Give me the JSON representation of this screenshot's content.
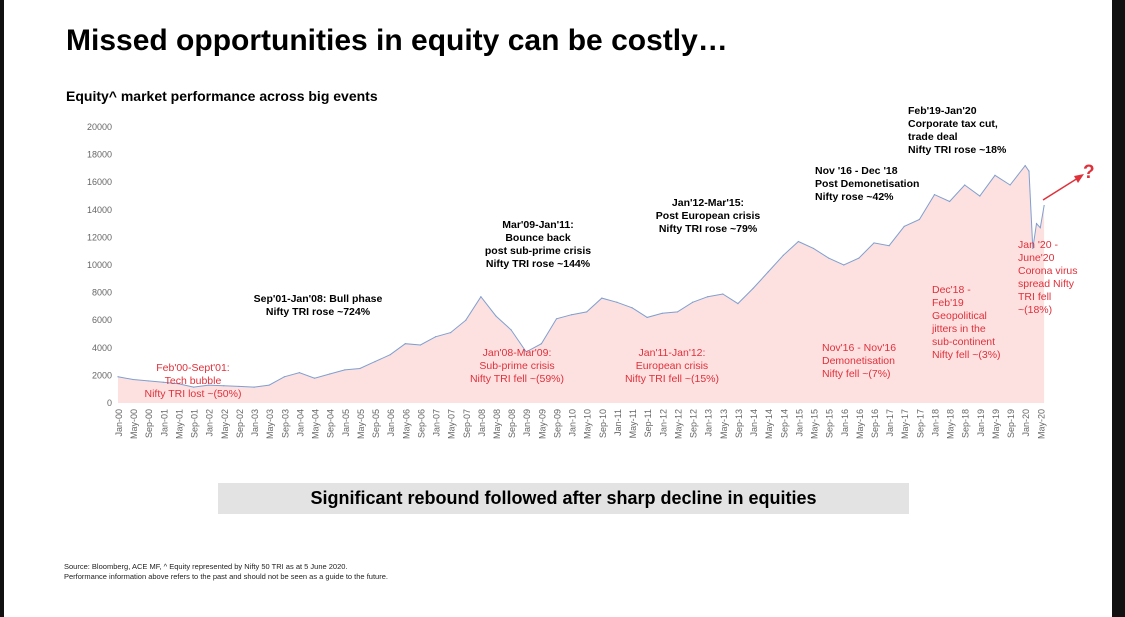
{
  "title": "Missed opportunities in equity can be costly…",
  "subtitle": "Equity^ market performance across big events",
  "banner": "Significant rebound followed after sharp decline in equities",
  "footer": [
    "Source: Bloomberg, ACE MF, ^ Equity represented by Nifty 50 TRI as at 5 June 2020.",
    "Performance information above refers to the past and should not be seen as a guide to the future."
  ],
  "question_mark": "?",
  "colors": {
    "line": "#7f9fd0",
    "fill": "#fde1e1",
    "red": "#e0303a",
    "arrow": "#e0303a"
  },
  "chart_data": {
    "type": "area",
    "title": "Equity^ market performance across big events",
    "xlabel": "",
    "ylabel": "",
    "ylim": [
      0,
      20000
    ],
    "yticks": [
      0,
      2000,
      4000,
      6000,
      8000,
      10000,
      12000,
      14000,
      16000,
      18000,
      20000
    ],
    "categories": [
      "Jan-00",
      "May-00",
      "Sep-00",
      "Jan-01",
      "May-01",
      "Sep-01",
      "Jan-02",
      "May-02",
      "Sep-02",
      "Jan-03",
      "May-03",
      "Sep-03",
      "Jan-04",
      "May-04",
      "Sep-04",
      "Jan-05",
      "May-05",
      "Sep-05",
      "Jan-06",
      "May-06",
      "Sep-06",
      "Jan-07",
      "May-07",
      "Sep-07",
      "Jan-08",
      "May-08",
      "Sep-08",
      "Jan-09",
      "May-09",
      "Sep-09",
      "Jan-10",
      "May-10",
      "Sep-10",
      "Jan-11",
      "May-11",
      "Sep-11",
      "Jan-12",
      "May-12",
      "Sep-12",
      "Jan-13",
      "May-13",
      "Sep-13",
      "Jan-14",
      "May-14",
      "Sep-14",
      "Jan-15",
      "May-15",
      "Sep-15",
      "Jan-16",
      "May-16",
      "Sep-16",
      "Jan-17",
      "May-17",
      "Sep-17",
      "Jan-18",
      "May-18",
      "Sep-18",
      "Jan-19",
      "May-19",
      "Sep-19",
      "Jan-20",
      "May-20"
    ],
    "series": [
      {
        "name": "Nifty 50 TRI",
        "points": [
          [
            "Jan-00",
            1900
          ],
          [
            "May-00",
            1700
          ],
          [
            "Sep-00",
            1600
          ],
          [
            "Jan-01",
            1500
          ],
          [
            "May-01",
            1400
          ],
          [
            "Sep-01",
            1150
          ],
          [
            "Jan-02",
            1300
          ],
          [
            "May-02",
            1250
          ],
          [
            "Sep-02",
            1200
          ],
          [
            "Jan-03",
            1150
          ],
          [
            "May-03",
            1300
          ],
          [
            "Sep-03",
            1900
          ],
          [
            "Jan-04",
            2200
          ],
          [
            "May-04",
            1800
          ],
          [
            "Sep-04",
            2100
          ],
          [
            "Jan-05",
            2400
          ],
          [
            "May-05",
            2500
          ],
          [
            "Sep-05",
            3000
          ],
          [
            "Jan-06",
            3500
          ],
          [
            "May-06",
            4300
          ],
          [
            "Sep-06",
            4200
          ],
          [
            "Jan-07",
            4800
          ],
          [
            "May-07",
            5100
          ],
          [
            "Sep-07",
            6000
          ],
          [
            "Jan-08",
            7700
          ],
          [
            "May-08",
            6300
          ],
          [
            "Sep-08",
            5300
          ],
          [
            "Jan-09",
            3700
          ],
          [
            "May-09",
            4300
          ],
          [
            "Sep-09",
            6100
          ],
          [
            "Jan-10",
            6400
          ],
          [
            "May-10",
            6600
          ],
          [
            "Sep-10",
            7600
          ],
          [
            "Jan-11",
            7300
          ],
          [
            "May-11",
            6900
          ],
          [
            "Sep-11",
            6200
          ],
          [
            "Jan-12",
            6500
          ],
          [
            "May-12",
            6600
          ],
          [
            "Sep-12",
            7300
          ],
          [
            "Jan-13",
            7700
          ],
          [
            "May-13",
            7900
          ],
          [
            "Sep-13",
            7200
          ],
          [
            "Jan-14",
            8300
          ],
          [
            "May-14",
            9500
          ],
          [
            "Sep-14",
            10700
          ],
          [
            "Jan-15",
            11700
          ],
          [
            "May-15",
            11200
          ],
          [
            "Sep-15",
            10500
          ],
          [
            "Jan-16",
            10000
          ],
          [
            "May-16",
            10500
          ],
          [
            "Sep-16",
            11600
          ],
          [
            "Jan-17",
            11400
          ],
          [
            "May-17",
            12800
          ],
          [
            "Sep-17",
            13300
          ],
          [
            "Jan-18",
            15100
          ],
          [
            "May-18",
            14600
          ],
          [
            "Sep-18",
            15800
          ],
          [
            "Jan-19",
            15000
          ],
          [
            "May-19",
            16500
          ],
          [
            "Sep-19",
            15800
          ],
          [
            "Jan-20",
            17200
          ],
          [
            "Feb-20",
            16800
          ],
          [
            "Mar-20",
            11200
          ],
          [
            "Apr-20",
            13000
          ],
          [
            "May-20",
            12700
          ],
          [
            "Jun-20",
            14300
          ]
        ]
      }
    ],
    "annotations": {
      "feb19": [
        "Feb'19-Jan'20",
        "Corporate tax cut,",
        "trade deal",
        "Nifty TRI rose ~18%"
      ],
      "nov16up": [
        "Nov '16 - Dec '18",
        "Post Demonetisation",
        "Nifty rose ~42%"
      ],
      "jan12": [
        "Jan'12-Mar'15:",
        "Post European crisis",
        "Nifty TRI rose ~79%"
      ],
      "mar09": [
        "Mar'09-Jan'11:",
        "Bounce back",
        "post sub-prime crisis",
        "Nifty TRI rose ~144%"
      ],
      "sep01": [
        "Sep'01-Jan'08: Bull phase",
        "Nifty TRI rose ~724%"
      ],
      "feb00": [
        "Feb'00-Sept'01:",
        "Tech bubble",
        "Nifty TRI lost ~(50%)"
      ],
      "jan08": [
        "Jan'08-Mar'09:",
        "Sub-prime crisis",
        "Nifty TRI fell ~(59%)"
      ],
      "jan11": [
        "Jan'11-Jan'12:",
        "European crisis",
        "Nifty TRI fell ~(15%)"
      ],
      "nov16down": [
        "Nov'16 - Nov'16",
        "Demonetisation",
        "Nifty fell ~(7%)"
      ],
      "dec18": [
        "Dec'18 -",
        "Feb'19",
        "Geopolitical",
        "jitters in the",
        "sub-continent",
        "Nifty fell ~(3%)"
      ],
      "jan20": [
        "Jan '20 -",
        "June'20",
        "Corona virus",
        "spread Nifty",
        "TRI fell",
        "~(18%)"
      ]
    }
  }
}
